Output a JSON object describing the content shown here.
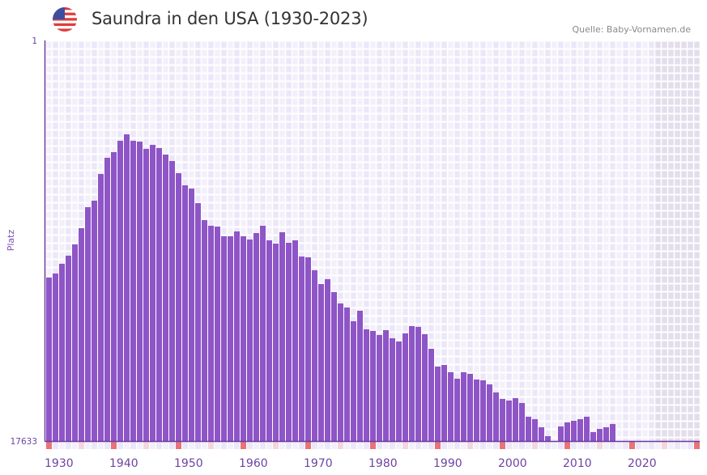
{
  "header": {
    "title": "Saundra in den USA (1930-2023)",
    "source": "Quelle: Baby-Vornamen.de",
    "flag_icon": "us-flag-icon"
  },
  "colors": {
    "bar": "#8e55c7",
    "axis": "#6a3a9e",
    "label": "#6b44a3",
    "decade_marker": "#e8737a",
    "half_decade_marker": "#f4d6de",
    "cell_a": "#f3f0fb",
    "cell_b": "#ece7f8",
    "future_shade": "#e3deeb"
  },
  "chart_data": {
    "type": "bar",
    "title": "Saundra in den USA (1930-2023)",
    "xlabel": "",
    "ylabel": "Platz",
    "y_inverted": true,
    "ylim": [
      1,
      17633
    ],
    "y_tick_labels": [
      "1",
      "17633"
    ],
    "x_tick_labels": [
      "1930",
      "1940",
      "1950",
      "1960",
      "1970",
      "1980",
      "1990",
      "2000",
      "2010",
      "2020"
    ],
    "x_range": [
      1930,
      2030
    ],
    "data_end_year": 2023,
    "grid": true,
    "years": [
      1930,
      1931,
      1932,
      1933,
      1934,
      1935,
      1936,
      1937,
      1938,
      1939,
      1940,
      1941,
      1942,
      1943,
      1944,
      1945,
      1946,
      1947,
      1948,
      1949,
      1950,
      1951,
      1952,
      1953,
      1954,
      1955,
      1956,
      1957,
      1958,
      1959,
      1960,
      1961,
      1962,
      1963,
      1964,
      1965,
      1966,
      1967,
      1968,
      1969,
      1970,
      1971,
      1972,
      1973,
      1974,
      1975,
      1976,
      1977,
      1978,
      1979,
      1980,
      1981,
      1982,
      1983,
      1984,
      1985,
      1986,
      1987,
      1988,
      1989,
      1990,
      1991,
      1992,
      1993,
      1994,
      1995,
      1996,
      1997,
      1998,
      1999,
      2000,
      2001,
      2002,
      2003,
      2004,
      2005,
      2006,
      2007,
      2008,
      2009,
      2010,
      2011,
      2012,
      2013,
      2014,
      2015,
      2016,
      2017,
      2018,
      2019,
      2020,
      2021,
      2022,
      2023
    ],
    "ranks": [
      10438,
      10260,
      9831,
      9475,
      8977,
      8265,
      7339,
      7054,
      5878,
      5166,
      4917,
      4418,
      4133,
      4418,
      4453,
      4774,
      4596,
      4738,
      5023,
      5308,
      5843,
      6377,
      6519,
      7161,
      7909,
      8158,
      8194,
      8621,
      8621,
      8407,
      8621,
      8763,
      8479,
      8158,
      8799,
      8942,
      8443,
      8906,
      8799,
      9512,
      9547,
      10117,
      10723,
      10509,
      11079,
      11578,
      11756,
      12361,
      11898,
      12717,
      12789,
      12967,
      12753,
      13109,
      13251,
      12895,
      12575,
      12610,
      12931,
      13572,
      14356,
      14285,
      14605,
      14890,
      14605,
      14676,
      14926,
      14961,
      15139,
      15495,
      15780,
      15852,
      15745,
      15959,
      16564,
      16671,
      17027,
      17419,
      null,
      16992,
      16813,
      16742,
      16671,
      16564,
      17241,
      17099,
      17027,
      16885,
      null,
      null,
      null,
      null,
      null,
      null
    ]
  }
}
